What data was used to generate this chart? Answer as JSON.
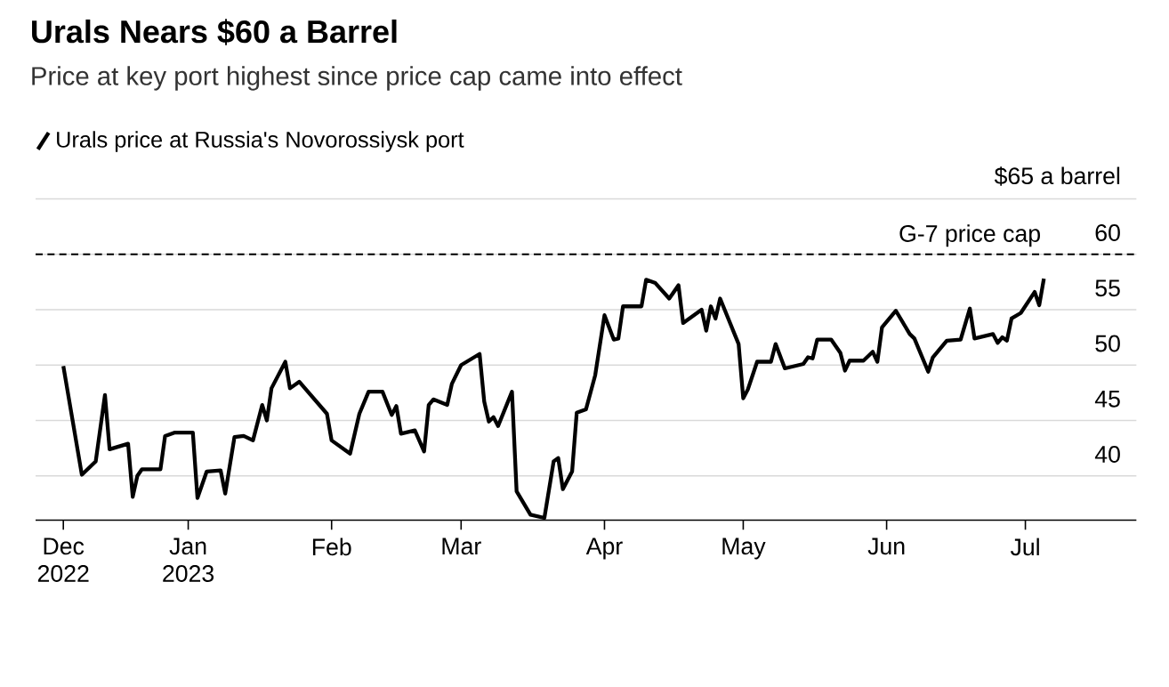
{
  "chart_data": {
    "type": "line",
    "title": "Urals Nears $60 a Barrel",
    "subtitle": "Price at key port highest since price cap came into effect",
    "x": [
      "2022-12-05",
      "2022-12-07",
      "2022-12-09",
      "2022-12-12",
      "2022-12-14",
      "2022-12-15",
      "2022-12-19",
      "2022-12-20",
      "2022-12-21",
      "2022-12-22",
      "2022-12-26",
      "2022-12-27",
      "2022-12-29",
      "2023-01-02",
      "2023-01-03",
      "2023-01-05",
      "2023-01-08",
      "2023-01-09",
      "2023-01-11",
      "2023-01-13",
      "2023-01-15",
      "2023-01-17",
      "2023-01-18",
      "2023-01-19",
      "2023-01-22",
      "2023-01-23",
      "2023-01-25",
      "2023-01-31",
      "2023-02-01",
      "2023-02-05",
      "2023-02-07",
      "2023-02-09",
      "2023-02-12",
      "2023-02-14",
      "2023-02-15",
      "2023-02-16",
      "2023-02-19",
      "2023-02-21",
      "2023-02-22",
      "2023-02-23",
      "2023-02-26",
      "2023-02-27",
      "2023-03-01",
      "2023-03-05",
      "2023-03-06",
      "2023-03-07",
      "2023-03-08",
      "2023-03-09",
      "2023-03-12",
      "2023-03-13",
      "2023-03-16",
      "2023-03-19",
      "2023-03-21",
      "2023-03-22",
      "2023-03-23",
      "2023-03-25",
      "2023-03-26",
      "2023-03-28",
      "2023-03-30",
      "2023-04-01",
      "2023-04-03",
      "2023-04-04",
      "2023-04-05",
      "2023-04-09",
      "2023-04-10",
      "2023-04-12",
      "2023-04-15",
      "2023-04-17",
      "2023-04-18",
      "2023-04-22",
      "2023-04-23",
      "2023-04-24",
      "2023-04-25",
      "2023-04-26",
      "2023-04-30",
      "2023-05-01",
      "2023-05-02",
      "2023-05-04",
      "2023-05-07",
      "2023-05-08",
      "2023-05-10",
      "2023-05-14",
      "2023-05-15",
      "2023-05-16",
      "2023-05-17",
      "2023-05-20",
      "2023-05-22",
      "2023-05-23",
      "2023-05-24",
      "2023-05-27",
      "2023-05-29",
      "2023-05-30",
      "2023-05-31",
      "2023-06-03",
      "2023-06-06",
      "2023-06-07",
      "2023-06-10",
      "2023-06-11",
      "2023-06-14",
      "2023-06-17",
      "2023-06-19",
      "2023-06-20",
      "2023-06-24",
      "2023-06-25",
      "2023-06-26",
      "2023-06-27",
      "2023-06-28",
      "2023-06-30",
      "2023-07-03",
      "2023-07-04",
      "2023-07-05"
    ],
    "series": [
      {
        "name": "Urals price at Russia's Novorossiysk port",
        "color": "#000000",
        "line_style": "solid",
        "values": [
          49.9,
          45.0,
          40.1,
          41.3,
          47.3,
          42.4,
          42.9,
          38.1,
          40.0,
          40.6,
          40.6,
          43.6,
          43.9,
          43.9,
          38.0,
          40.4,
          40.5,
          38.4,
          43.5,
          43.6,
          43.2,
          46.4,
          45.0,
          47.9,
          50.3,
          47.9,
          48.5,
          45.6,
          43.2,
          42.0,
          45.6,
          47.6,
          47.6,
          45.5,
          46.3,
          43.8,
          44.1,
          42.2,
          46.4,
          46.9,
          46.4,
          48.3,
          50.0,
          51.0,
          46.7,
          44.9,
          45.3,
          44.5,
          47.6,
          38.6,
          36.5,
          36.2,
          41.3,
          41.6,
          38.8,
          40.4,
          45.7,
          46.0,
          49.1,
          54.5,
          52.3,
          52.4,
          55.3,
          55.3,
          57.7,
          57.4,
          56.0,
          57.2,
          53.8,
          55.0,
          53.1,
          55.3,
          54.2,
          56.0,
          51.9,
          47.0,
          47.8,
          50.3,
          50.3,
          51.9,
          49.7,
          50.1,
          50.7,
          50.6,
          52.3,
          52.3,
          51.1,
          49.5,
          50.4,
          50.4,
          51.2,
          50.3,
          53.4,
          54.9,
          52.8,
          52.4,
          49.4,
          50.7,
          52.2,
          52.3,
          55.1,
          52.4,
          52.8,
          52.0,
          52.5,
          52.2,
          54.2,
          54.7,
          56.6,
          55.4,
          57.8
        ]
      }
    ],
    "xlim": [
      "2022-11-29",
      "2023-07-25"
    ],
    "xticks": [
      {
        "value": "2022-12-05",
        "label": "Dec 2022"
      },
      {
        "value": "2023-01-01",
        "label": "Jan 2023"
      },
      {
        "value": "2023-02-01",
        "label": "Feb"
      },
      {
        "value": "2023-03-01",
        "label": "Mar"
      },
      {
        "value": "2023-04-01",
        "label": "Apr"
      },
      {
        "value": "2023-05-01",
        "label": "May"
      },
      {
        "value": "2023-06-01",
        "label": "Jun"
      },
      {
        "value": "2023-07-01",
        "label": "Jul"
      }
    ],
    "ylim": [
      36,
      65
    ],
    "yticks": [
      40,
      45,
      50,
      55,
      60,
      {
        "value": 65,
        "label": "$65 a barrel"
      }
    ],
    "ref_lines": [
      {
        "axis": "y",
        "value": 60,
        "label": "G-7 price cap",
        "color": "#000000",
        "line_style": "dashed"
      }
    ],
    "grid": "y",
    "legend": "top left"
  }
}
